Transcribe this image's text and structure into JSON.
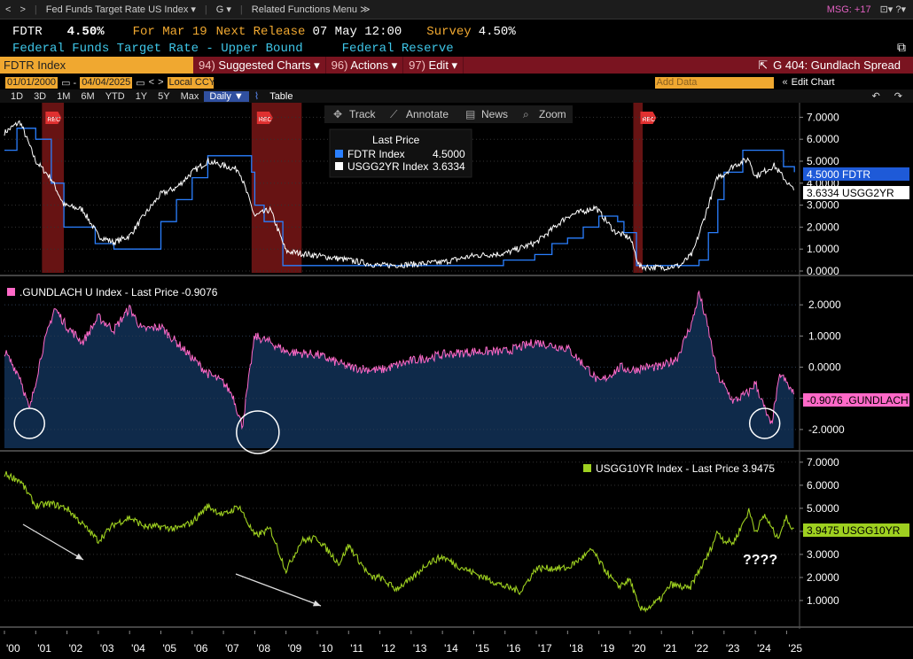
{
  "topbar": {
    "back": "<",
    "fwd": ">",
    "security": "Fed Funds Target Rate US Index ▾",
    "g": "G ▾",
    "related": "Related Functions Menu ≫",
    "msg": "MSG: +17",
    "win": "⊡▾ ?▾"
  },
  "quote": {
    "ticker": "FDTR",
    "price": "4.50%",
    "for": "For Mar 19",
    "next_lbl": "Next Release",
    "next_val": "07 May 12:00",
    "survey_lbl": "Survey",
    "survey_val": "4.50%"
  },
  "sub": {
    "name": "Federal Funds Target Rate - Upper Bound",
    "source": "Federal Reserve"
  },
  "cmd": {
    "field": "FDTR Index",
    "suggested": "Suggested Charts ▾",
    "suggested_num": "94)",
    "actions": "Actions ▾",
    "actions_num": "96)",
    "edit": "Edit ▾",
    "edit_num": "97)",
    "chart_name": "G 404: Gundlach Spread"
  },
  "dates": {
    "start": "01/01/2000",
    "end": "04/04/2025",
    "ccy": "Local CCY",
    "add": "Add Data",
    "editchart": "Edit Chart"
  },
  "ranges": [
    "1D",
    "3D",
    "1M",
    "6M",
    "YTD",
    "1Y",
    "5Y",
    "Max",
    "Daily ▼",
    "Table"
  ],
  "tools": {
    "track": "Track",
    "annotate": "Annotate",
    "news": "News",
    "zoom": "Zoom"
  },
  "colors": {
    "fdtr": "#2a7fff",
    "usgg2yr": "#ffffff",
    "gundlach": "#ff69c8",
    "usgg10yr": "#9ed020",
    "rec": "#8a1a1a",
    "amber": "#f0a830"
  },
  "chart_data": [
    {
      "type": "line",
      "title": "Last Price",
      "series": [
        {
          "name": "FDTR Index",
          "last": "4.5000",
          "x": [
            2000,
            2000.4,
            2001,
            2001.5,
            2001.9,
            2002.9,
            2003.5,
            2004.5,
            2005,
            2005.5,
            2006,
            2006.5,
            2007.6,
            2007.9,
            2008,
            2008.3,
            2008.9,
            2015.95,
            2016.95,
            2017.5,
            2018,
            2018.5,
            2019,
            2019.6,
            2019.8,
            2020.2,
            2022.2,
            2022.5,
            2022.8,
            2023,
            2023.6,
            2024.7,
            2024.9,
            2025.25
          ],
          "y": [
            5.5,
            6.5,
            6.0,
            4.0,
            2.0,
            1.25,
            1.0,
            1.0,
            2.25,
            3.25,
            4.25,
            5.25,
            5.25,
            4.5,
            3.0,
            2.25,
            0.25,
            0.5,
            0.75,
            1.25,
            1.5,
            2.0,
            2.5,
            2.25,
            1.75,
            0.25,
            0.5,
            1.75,
            3.25,
            4.5,
            5.5,
            5.5,
            4.75,
            4.5
          ]
        },
        {
          "name": "USGG2YR Index",
          "last": "3.6334",
          "x": [
            2000,
            2000.5,
            2001,
            2001.5,
            2001.9,
            2002.5,
            2003,
            2003.5,
            2004,
            2004.5,
            2005,
            2005.5,
            2006,
            2006.5,
            2007,
            2007.5,
            2008,
            2008.5,
            2009,
            2010,
            2011,
            2012,
            2013,
            2014,
            2015,
            2016,
            2017,
            2018,
            2018.9,
            2019.5,
            2020,
            2020.3,
            2021,
            2021.6,
            2022,
            2022.5,
            2022.8,
            2023,
            2023.3,
            2023.8,
            2024,
            2024.6,
            2025.25
          ],
          "y": [
            6.3,
            6.8,
            5.0,
            4.2,
            3.0,
            2.8,
            1.6,
            1.3,
            1.6,
            2.6,
            3.5,
            3.8,
            4.5,
            5.0,
            4.8,
            4.6,
            2.5,
            2.8,
            0.9,
            0.7,
            0.5,
            0.25,
            0.3,
            0.4,
            0.7,
            0.8,
            1.3,
            2.5,
            2.9,
            1.8,
            1.5,
            0.2,
            0.15,
            0.25,
            0.8,
            3.0,
            4.3,
            4.4,
            4.8,
            5.1,
            4.3,
            4.8,
            3.63
          ]
        }
      ],
      "ylim": [
        0,
        7.5
      ],
      "yticks": [
        "7.0000",
        "6.0000",
        "5.0000",
        "4.0000",
        "3.0000",
        "2.0000",
        "1.0000",
        "0.0000"
      ],
      "legend_placement": "top-center",
      "recessions": [
        [
          2001.2,
          2001.9
        ],
        [
          2007.9,
          2009.5
        ],
        [
          2020.1,
          2020.4
        ]
      ],
      "rec_label": "REC",
      "tags": [
        "4.5000 FDTR",
        "3.6334 USGG2YR"
      ]
    },
    {
      "type": "area",
      "title": ".GUNDLACH U Index - Last Price -0.9076",
      "series": [
        {
          "name": ".GUNDLACH U Index",
          "last": "-0.9076",
          "x": [
            2000,
            2000.5,
            2000.8,
            2001.2,
            2001.6,
            2002,
            2002.5,
            2003,
            2003.5,
            2004,
            2004.4,
            2005,
            2005.5,
            2006,
            2006.5,
            2007,
            2007.3,
            2007.6,
            2008,
            2008.5,
            2009,
            2010,
            2011,
            2012,
            2013,
            2014,
            2015,
            2016,
            2017,
            2018,
            2018.7,
            2019,
            2019.7,
            2020,
            2020.5,
            2021,
            2021.5,
            2022,
            2022.2,
            2022.5,
            2022.8,
            2023,
            2023.3,
            2023.8,
            2024,
            2024.5,
            2024.8,
            2025.25
          ],
          "y": [
            0.5,
            -0.3,
            -1.4,
            0.5,
            1.9,
            1.3,
            0.8,
            1.6,
            1.2,
            1.9,
            1.2,
            1.3,
            0.8,
            0.3,
            -0.2,
            -0.5,
            -0.9,
            -1.9,
            1.0,
            0.8,
            0.5,
            0.4,
            0.0,
            -0.1,
            0.2,
            0.4,
            0.5,
            0.5,
            0.8,
            0.6,
            -0.1,
            -0.5,
            0.0,
            -0.1,
            0.0,
            0.0,
            0.3,
            1.5,
            2.4,
            1.2,
            -0.3,
            -0.6,
            -1.1,
            -0.8,
            -0.5,
            -1.9,
            -0.2,
            -0.9076
          ]
        }
      ],
      "ylim": [
        -2.6,
        2.8
      ],
      "yticks": [
        "2.0000",
        "1.0000",
        "0.0000",
        "-1.0000",
        "-2.0000"
      ],
      "tag": "-0.9076 .GUNDLACH",
      "highlight_circles": [
        2000.8,
        2007.9,
        2024.3
      ]
    },
    {
      "type": "line",
      "title": "USGG10YR Index - Last Price 3.9475",
      "series": [
        {
          "name": "USGG10YR Index",
          "last": "3.9475",
          "x": [
            2000,
            2000.5,
            2001,
            2001.5,
            2002,
            2002.5,
            2003,
            2003.5,
            2004,
            2004.5,
            2005,
            2005.5,
            2006,
            2006.5,
            2007,
            2007.5,
            2008,
            2008.5,
            2009,
            2009.5,
            2010,
            2010.7,
            2011,
            2011.7,
            2012,
            2012.5,
            2013,
            2013.5,
            2014,
            2014.5,
            2015,
            2016,
            2016.5,
            2017,
            2018,
            2018.8,
            2019,
            2019.6,
            2020,
            2020.3,
            2020.6,
            2021,
            2021.3,
            2021.9,
            2022,
            2022.5,
            2022.8,
            2023,
            2023.3,
            2023.8,
            2024,
            2024.3,
            2024.7,
            2025,
            2025.25
          ],
          "y": [
            6.5,
            6.2,
            5.1,
            5.2,
            5.0,
            4.3,
            3.6,
            4.3,
            4.6,
            4.2,
            4.2,
            4.1,
            4.4,
            5.1,
            4.7,
            5.1,
            3.8,
            4.1,
            2.3,
            3.6,
            3.7,
            2.6,
            3.4,
            2.0,
            2.0,
            1.5,
            1.9,
            2.6,
            2.9,
            2.5,
            2.2,
            1.6,
            1.4,
            2.4,
            2.4,
            3.2,
            2.7,
            1.6,
            1.9,
            0.6,
            0.7,
            1.1,
            1.7,
            1.5,
            1.8,
            3.0,
            4.0,
            3.6,
            3.5,
            4.9,
            4.0,
            4.7,
            3.7,
            4.6,
            3.95
          ]
        }
      ],
      "ylim": [
        0,
        7.3
      ],
      "yticks": [
        "7.0000",
        "6.0000",
        "5.0000",
        "4.0000",
        "3.0000",
        "2.0000",
        "1.0000"
      ],
      "tag": "3.9475 USGG10YR",
      "annotation": "????"
    }
  ],
  "xaxis": [
    "'00",
    "'01",
    "'02",
    "'03",
    "'04",
    "'05",
    "'06",
    "'07",
    "'08",
    "'09",
    "'10",
    "'11",
    "'12",
    "'13",
    "'14",
    "'15",
    "'16",
    "'17",
    "'18",
    "'19",
    "'20",
    "'21",
    "'22",
    "'23",
    "'24",
    "'25"
  ]
}
